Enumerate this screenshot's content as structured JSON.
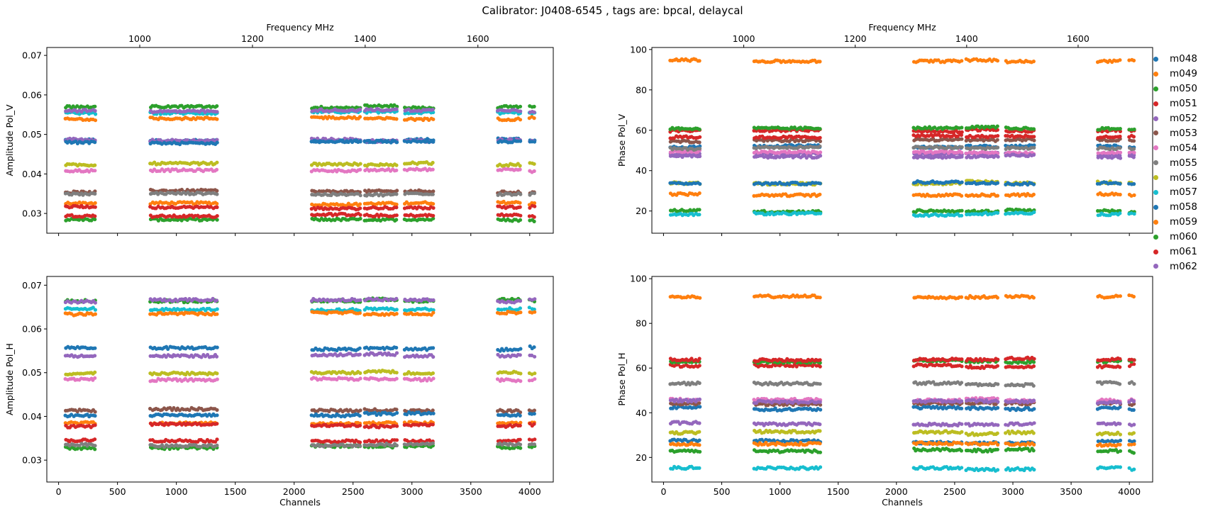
{
  "figure_title": "Calibrator: J0408-6545 , tags are: bpcal, delaycal",
  "legend": {
    "placement": "right",
    "entries": [
      {
        "name": "m048",
        "color": "#1f77b4"
      },
      {
        "name": "m049",
        "color": "#ff7f0e"
      },
      {
        "name": "m050",
        "color": "#2ca02c"
      },
      {
        "name": "m051",
        "color": "#d62728"
      },
      {
        "name": "m052",
        "color": "#9467bd"
      },
      {
        "name": "m053",
        "color": "#8c564b"
      },
      {
        "name": "m054",
        "color": "#e377c2"
      },
      {
        "name": "m055",
        "color": "#7f7f7f"
      },
      {
        "name": "m056",
        "color": "#bcbd22"
      },
      {
        "name": "m057",
        "color": "#17becf"
      },
      {
        "name": "m058",
        "color": "#1f77b4"
      },
      {
        "name": "m059",
        "color": "#ff7f0e"
      },
      {
        "name": "m060",
        "color": "#2ca02c"
      },
      {
        "name": "m061",
        "color": "#d62728"
      },
      {
        "name": "m062",
        "color": "#9467bd"
      }
    ]
  },
  "chart_data": [
    {
      "id": "amp_v",
      "type": "scatter",
      "ylabel": "Amplitude Pol_V",
      "top_xlabel": "Frequency MHz",
      "top_xticks": [
        1000,
        1200,
        1400,
        1600
      ],
      "freq_range_mhz": [
        856,
        1712
      ],
      "xlim": [
        -100,
        4200
      ],
      "ylim": [
        0.025,
        0.072
      ],
      "yticks": [
        0.03,
        0.04,
        0.05,
        0.06,
        0.07
      ],
      "yticklabels": [
        "0.03",
        "0.04",
        "0.05",
        "0.06",
        "0.07"
      ],
      "channel_blocks": [
        [
          60,
          310
        ],
        [
          780,
          1345
        ],
        [
          2150,
          2560
        ],
        [
          2600,
          2870
        ],
        [
          2940,
          3180
        ],
        [
          3730,
          3920
        ],
        [
          4000,
          4040
        ]
      ],
      "series_levels": {
        "m048": 0.0485,
        "m049": 0.0325,
        "m050": 0.0285,
        "m051": 0.0295,
        "m052": 0.0485,
        "m053": 0.0355,
        "m054": 0.041,
        "m055": 0.035,
        "m056": 0.0425,
        "m057": 0.0555,
        "m058": 0.048,
        "m059": 0.054,
        "m060": 0.057,
        "m061": 0.0315,
        "m062": 0.056
      }
    },
    {
      "id": "phase_v",
      "type": "scatter",
      "ylabel": "Phase Pol_V",
      "top_xlabel": "Frequency MHz",
      "top_xticks": [
        1000,
        1200,
        1400,
        1600
      ],
      "freq_range_mhz": [
        856,
        1712
      ],
      "xlim": [
        -100,
        4200
      ],
      "ylim": [
        9,
        101
      ],
      "yticks": [
        20,
        40,
        60,
        80,
        100
      ],
      "yticklabels": [
        "20",
        "40",
        "60",
        "80",
        "100"
      ],
      "channel_blocks": [
        [
          60,
          310
        ],
        [
          780,
          1345
        ],
        [
          2150,
          2560
        ],
        [
          2600,
          2870
        ],
        [
          2940,
          3180
        ],
        [
          3730,
          3920
        ],
        [
          4000,
          4040
        ]
      ],
      "series_levels": {
        "m048": 52,
        "m049": 94.5,
        "m050": 20,
        "m051": 60,
        "m052": 48,
        "m053": 55,
        "m054": 49,
        "m055": 51,
        "m056": 34,
        "m057": 18.5,
        "m058": 34,
        "m059": 28,
        "m060": 61,
        "m061": 57,
        "m062": 47
      }
    },
    {
      "id": "amp_h",
      "type": "scatter",
      "ylabel": "Amplitude Pol_H",
      "xlabel": "Channels",
      "xticks": [
        0,
        500,
        1000,
        1500,
        2000,
        2500,
        3000,
        3500,
        4000
      ],
      "xlim": [
        -100,
        4200
      ],
      "ylim": [
        0.025,
        0.072
      ],
      "yticks": [
        0.03,
        0.04,
        0.05,
        0.06,
        0.07
      ],
      "yticklabels": [
        "0.03",
        "0.04",
        "0.05",
        "0.06",
        "0.07"
      ],
      "channel_blocks": [
        [
          60,
          310
        ],
        [
          780,
          1345
        ],
        [
          2150,
          2560
        ],
        [
          2600,
          2870
        ],
        [
          2940,
          3180
        ],
        [
          3730,
          3920
        ],
        [
          4000,
          4040
        ]
      ],
      "series_levels": {
        "m048": 0.0555,
        "m049": 0.0385,
        "m050": 0.033,
        "m051": 0.0345,
        "m052": 0.054,
        "m053": 0.0415,
        "m054": 0.0485,
        "m055": 0.0335,
        "m056": 0.05,
        "m057": 0.0645,
        "m058": 0.0405,
        "m059": 0.0635,
        "m060": 0.0665,
        "m061": 0.038,
        "m062": 0.0665
      }
    },
    {
      "id": "phase_h",
      "type": "scatter",
      "ylabel": "Phase Pol_H",
      "xlabel": "Channels",
      "xticks": [
        0,
        500,
        1000,
        1500,
        2000,
        2500,
        3000,
        3500,
        4000
      ],
      "xlim": [
        -100,
        4200
      ],
      "ylim": [
        9,
        101
      ],
      "yticks": [
        20,
        40,
        60,
        80,
        100
      ],
      "yticklabels": [
        "20",
        "40",
        "60",
        "80",
        "100"
      ],
      "channel_blocks": [
        [
          60,
          310
        ],
        [
          780,
          1345
        ],
        [
          2150,
          2560
        ],
        [
          2600,
          2870
        ],
        [
          2940,
          3180
        ],
        [
          3730,
          3920
        ],
        [
          4000,
          4040
        ]
      ],
      "series_levels": {
        "m048": 42,
        "m049": 92,
        "m050": 23,
        "m051": 61,
        "m052": 35,
        "m053": 44,
        "m054": 46,
        "m055": 53,
        "m056": 31,
        "m057": 15,
        "m058": 27,
        "m059": 26,
        "m060": 63,
        "m061": 64,
        "m062": 45
      }
    }
  ]
}
